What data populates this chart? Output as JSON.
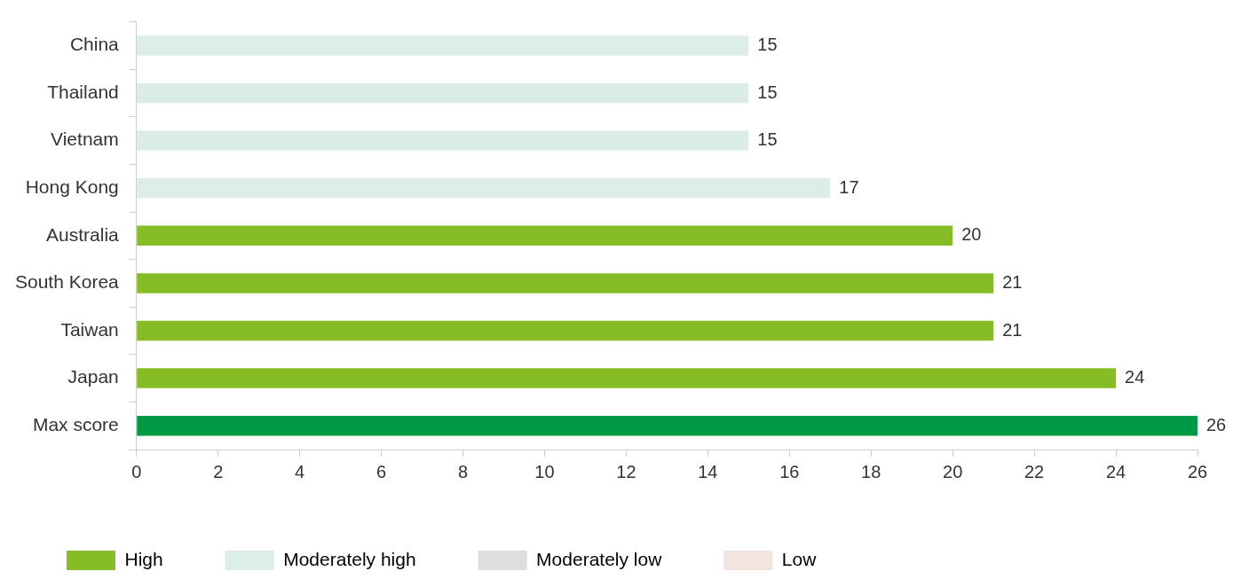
{
  "chart_data": {
    "type": "bar",
    "orientation": "horizontal",
    "stacked": true,
    "categories": [
      "China",
      "Thailand",
      "Vietnam",
      "Hong Kong",
      "Australia",
      "South Korea",
      "Taiwan",
      "Japan",
      "Max score"
    ],
    "series": [
      {
        "name": "High",
        "color": "#86bc25",
        "colors": [
          "#86bc25",
          "#86bc25",
          "#86bc25",
          "#86bc25",
          "#86bc25",
          "#86bc25",
          "#86bc25",
          "#86bc25",
          "#009a44"
        ],
        "values": [
          null,
          null,
          null,
          null,
          20,
          21,
          21,
          24,
          26
        ]
      },
      {
        "name": "Moderately high",
        "color": "#dcede7",
        "values": [
          15,
          15,
          15,
          17,
          null,
          null,
          null,
          null,
          null
        ]
      },
      {
        "name": "Moderately low",
        "color": "#dedede",
        "values": [
          null,
          null,
          null,
          null,
          null,
          null,
          null,
          null,
          null
        ]
      },
      {
        "name": "Low",
        "color": "#f3e3df",
        "values": [
          null,
          null,
          null,
          null,
          null,
          null,
          null,
          null,
          null
        ]
      }
    ],
    "xlim": [
      0,
      26
    ],
    "xticks": [
      0,
      2,
      4,
      6,
      8,
      10,
      12,
      14,
      16,
      18,
      20,
      22,
      24,
      26
    ],
    "grid": false,
    "legend": "bottom",
    "data_labels": true
  }
}
